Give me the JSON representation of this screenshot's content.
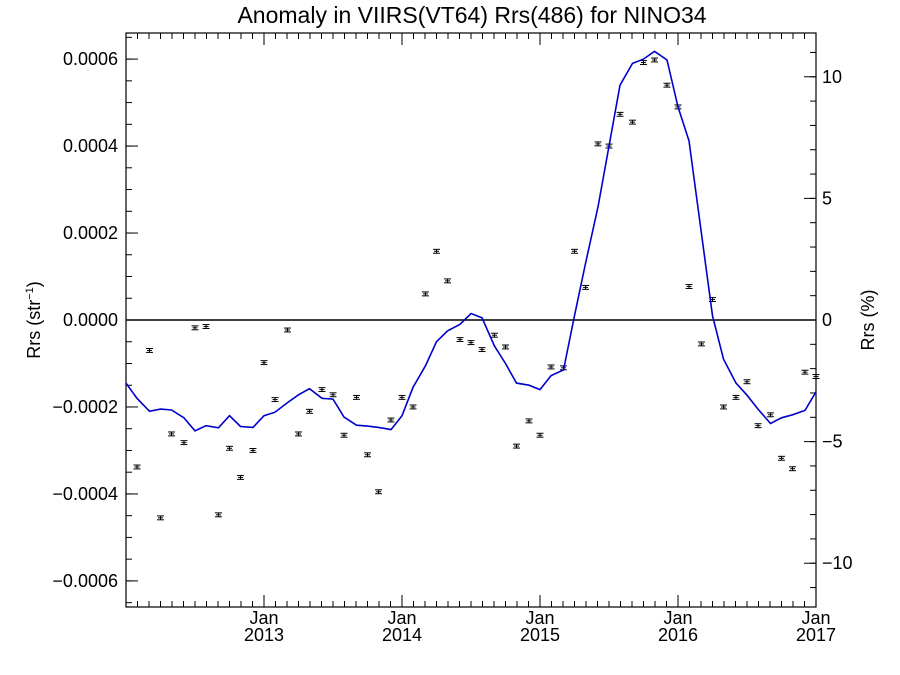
{
  "chart_data": {
    "type": "scatter",
    "title": "Anomaly in VIIRS(VT64) Rrs(486) for NINO34",
    "ylabel_left": "Rrs (str",
    "ylabel_left_sup": "−1",
    "ylabel_left_end": ")",
    "ylabel_right": "Rrs (%)",
    "ylim_left": [
      -0.00066,
      0.00066
    ],
    "ylim_right": [
      -11.8,
      11.8
    ],
    "xlim": [
      2012.0,
      2017.0
    ],
    "zero_line": true,
    "grid": false,
    "line_color": "#0000cc",
    "point_color": "#000000",
    "left_ticks": [
      {
        "value": -0.0006,
        "label": "−0.0006"
      },
      {
        "value": -0.0004,
        "label": "−0.0004"
      },
      {
        "value": -0.0002,
        "label": "−0.0002"
      },
      {
        "value": 0.0,
        "label": "0.0000"
      },
      {
        "value": 0.0002,
        "label": "0.0002"
      },
      {
        "value": 0.0004,
        "label": "0.0004"
      },
      {
        "value": 0.0006,
        "label": "0.0006"
      }
    ],
    "right_ticks": [
      {
        "value": -10,
        "label": "−10"
      },
      {
        "value": -5,
        "label": "−5"
      },
      {
        "value": 0,
        "label": "0"
      },
      {
        "value": 5,
        "label": "5"
      },
      {
        "value": 10,
        "label": "10"
      }
    ],
    "x_ticks": [
      {
        "value": 2013.0,
        "month": "Jan",
        "year": "2013"
      },
      {
        "value": 2014.0,
        "month": "Jan",
        "year": "2014"
      },
      {
        "value": 2015.0,
        "month": "Jan",
        "year": "2015"
      },
      {
        "value": 2016.0,
        "month": "Jan",
        "year": "2016"
      },
      {
        "value": 2017.0,
        "month": "Jan",
        "year": "2017"
      }
    ],
    "series": [
      {
        "kind": "points_with_error_bars",
        "error": 4.5e-06,
        "x": [
          2012.08,
          2012.17,
          2012.25,
          2012.33,
          2012.42,
          2012.5,
          2012.58,
          2012.67,
          2012.75,
          2012.83,
          2012.92,
          2013.0,
          2013.08,
          2013.17,
          2013.25,
          2013.33,
          2013.42,
          2013.5,
          2013.58,
          2013.67,
          2013.75,
          2013.83,
          2013.92,
          2014.0,
          2014.08,
          2014.17,
          2014.25,
          2014.33,
          2014.42,
          2014.5,
          2014.58,
          2014.67,
          2014.75,
          2014.83,
          2014.92,
          2015.0,
          2015.08,
          2015.17,
          2015.25,
          2015.33,
          2015.42,
          2015.5,
          2015.58,
          2015.67,
          2015.75,
          2015.83,
          2015.92,
          2016.0,
          2016.08,
          2016.17,
          2016.25,
          2016.33,
          2016.42,
          2016.5,
          2016.58,
          2016.67,
          2016.75,
          2016.83,
          2016.92,
          2017.0
        ],
        "y": [
          -0.000338,
          -7e-05,
          -0.000455,
          -0.000262,
          -0.000282,
          -1.8e-05,
          -1.5e-05,
          -0.000448,
          -0.000295,
          -0.000362,
          -0.0003,
          -9.8e-05,
          -0.000183,
          -2.3e-05,
          -0.000262,
          -0.00021,
          -0.00016,
          -0.000172,
          -0.000265,
          -0.000178,
          -0.00031,
          -0.000395,
          -0.00023,
          -0.000178,
          -0.0002,
          6e-05,
          0.000158,
          9e-05,
          -4.5e-05,
          -5.2e-05,
          -6.8e-05,
          -3.5e-05,
          -6.2e-05,
          -0.00029,
          -0.000232,
          -0.000265,
          -0.000108,
          -0.00011,
          0.000158,
          7.5e-05,
          0.000405,
          0.0004,
          0.000473,
          0.000455,
          0.000592,
          0.000598,
          0.00054,
          0.00049,
          7.7e-05,
          -5.5e-05,
          4.7e-05,
          -0.0002,
          -0.000178,
          -0.000142,
          -0.000243,
          -0.000218,
          -0.000318,
          -0.000342,
          -0.00012,
          -0.00013
        ]
      },
      {
        "kind": "line",
        "x": [
          2012.0,
          2012.08,
          2012.17,
          2012.25,
          2012.33,
          2012.42,
          2012.5,
          2012.58,
          2012.67,
          2012.75,
          2012.83,
          2012.92,
          2013.0,
          2013.08,
          2013.17,
          2013.25,
          2013.33,
          2013.42,
          2013.5,
          2013.58,
          2013.67,
          2013.75,
          2013.83,
          2013.92,
          2014.0,
          2014.08,
          2014.17,
          2014.25,
          2014.33,
          2014.42,
          2014.5,
          2014.58,
          2014.67,
          2014.75,
          2014.83,
          2014.92,
          2015.0,
          2015.08,
          2015.17,
          2015.25,
          2015.33,
          2015.42,
          2015.5,
          2015.58,
          2015.67,
          2015.75,
          2015.83,
          2015.92,
          2016.0,
          2016.08,
          2016.17,
          2016.25,
          2016.33,
          2016.42,
          2016.5,
          2016.58,
          2016.67,
          2016.75,
          2016.83,
          2016.92,
          2017.0
        ],
        "y": [
          -0.000145,
          -0.00018,
          -0.00021,
          -0.000205,
          -0.000207,
          -0.000225,
          -0.000255,
          -0.000243,
          -0.000248,
          -0.00022,
          -0.000245,
          -0.000247,
          -0.00022,
          -0.000212,
          -0.00019,
          -0.000172,
          -0.000158,
          -0.00018,
          -0.000182,
          -0.000223,
          -0.000242,
          -0.000244,
          -0.000247,
          -0.000252,
          -0.00022,
          -0.000155,
          -0.000105,
          -5e-05,
          -2.5e-05,
          -1e-05,
          1.5e-05,
          5e-06,
          -6e-05,
          -0.0001,
          -0.000145,
          -0.00015,
          -0.00016,
          -0.000128,
          -0.000115,
          1e-05,
          0.00013,
          0.00026,
          0.0004,
          0.00054,
          0.00059,
          0.0006,
          0.000618,
          0.000598,
          0.00049,
          0.000412,
          0.000198,
          1e-05,
          -9e-05,
          -0.000145,
          -0.000173,
          -0.000205,
          -0.000238,
          -0.000225,
          -0.000218,
          -0.000208,
          -0.000165
        ]
      }
    ]
  }
}
